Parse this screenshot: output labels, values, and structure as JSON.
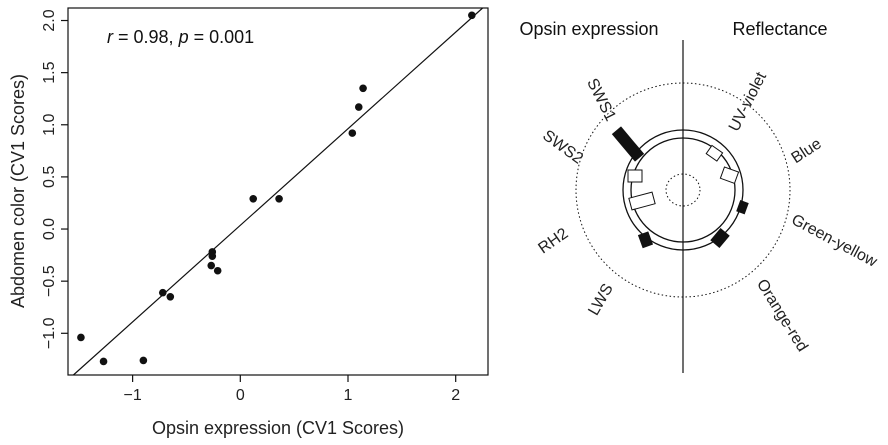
{
  "chart_data": [
    {
      "type": "scatter",
      "xlabel": "Opsin expression (CV1 Scores)",
      "ylabel": "Abdomen color (CV1 Scores)",
      "xlim": [
        -1.6,
        2.3
      ],
      "ylim": [
        -1.4,
        2.12
      ],
      "xticks": [
        -1,
        0,
        1,
        2
      ],
      "yticks": [
        -1.0,
        -0.5,
        0.0,
        0.5,
        1.0,
        1.5,
        2.0
      ],
      "xtick_labels": [
        "−1",
        "0",
        "1",
        "2"
      ],
      "ytick_labels": [
        "−1.0",
        "−0.5",
        "0.0",
        "0.5",
        "1.0",
        "1.5",
        "2.0"
      ],
      "annotation": {
        "r_symbol": "r",
        "r_text": " = 0.98, ",
        "p_symbol": "p",
        "p_text": " = 0.001"
      },
      "points": [
        {
          "x": -1.48,
          "y": -1.04
        },
        {
          "x": -1.27,
          "y": -1.27
        },
        {
          "x": -0.9,
          "y": -1.26
        },
        {
          "x": -0.72,
          "y": -0.61
        },
        {
          "x": -0.65,
          "y": -0.65
        },
        {
          "x": -0.26,
          "y": -0.22
        },
        {
          "x": -0.26,
          "y": -0.26
        },
        {
          "x": -0.27,
          "y": -0.35
        },
        {
          "x": -0.21,
          "y": -0.4
        },
        {
          "x": 0.12,
          "y": 0.29
        },
        {
          "x": 0.36,
          "y": 0.29
        },
        {
          "x": 1.04,
          "y": 0.92
        },
        {
          "x": 1.1,
          "y": 1.17
        },
        {
          "x": 1.14,
          "y": 1.35
        },
        {
          "x": 2.15,
          "y": 2.05
        }
      ],
      "fit_line": [
        {
          "x": -1.55,
          "y": -1.4
        },
        {
          "x": 2.25,
          "y": 2.12
        }
      ],
      "grid": false
    }
  ],
  "diagram": {
    "left_title": "Opsin expression",
    "right_title": "Reflectance",
    "left_labels": [
      "SWS1",
      "SWS2",
      "RH2",
      "LWS"
    ],
    "right_labels": [
      "UV-violet",
      "Blue",
      "Green-yellow",
      "Orange-red"
    ]
  }
}
